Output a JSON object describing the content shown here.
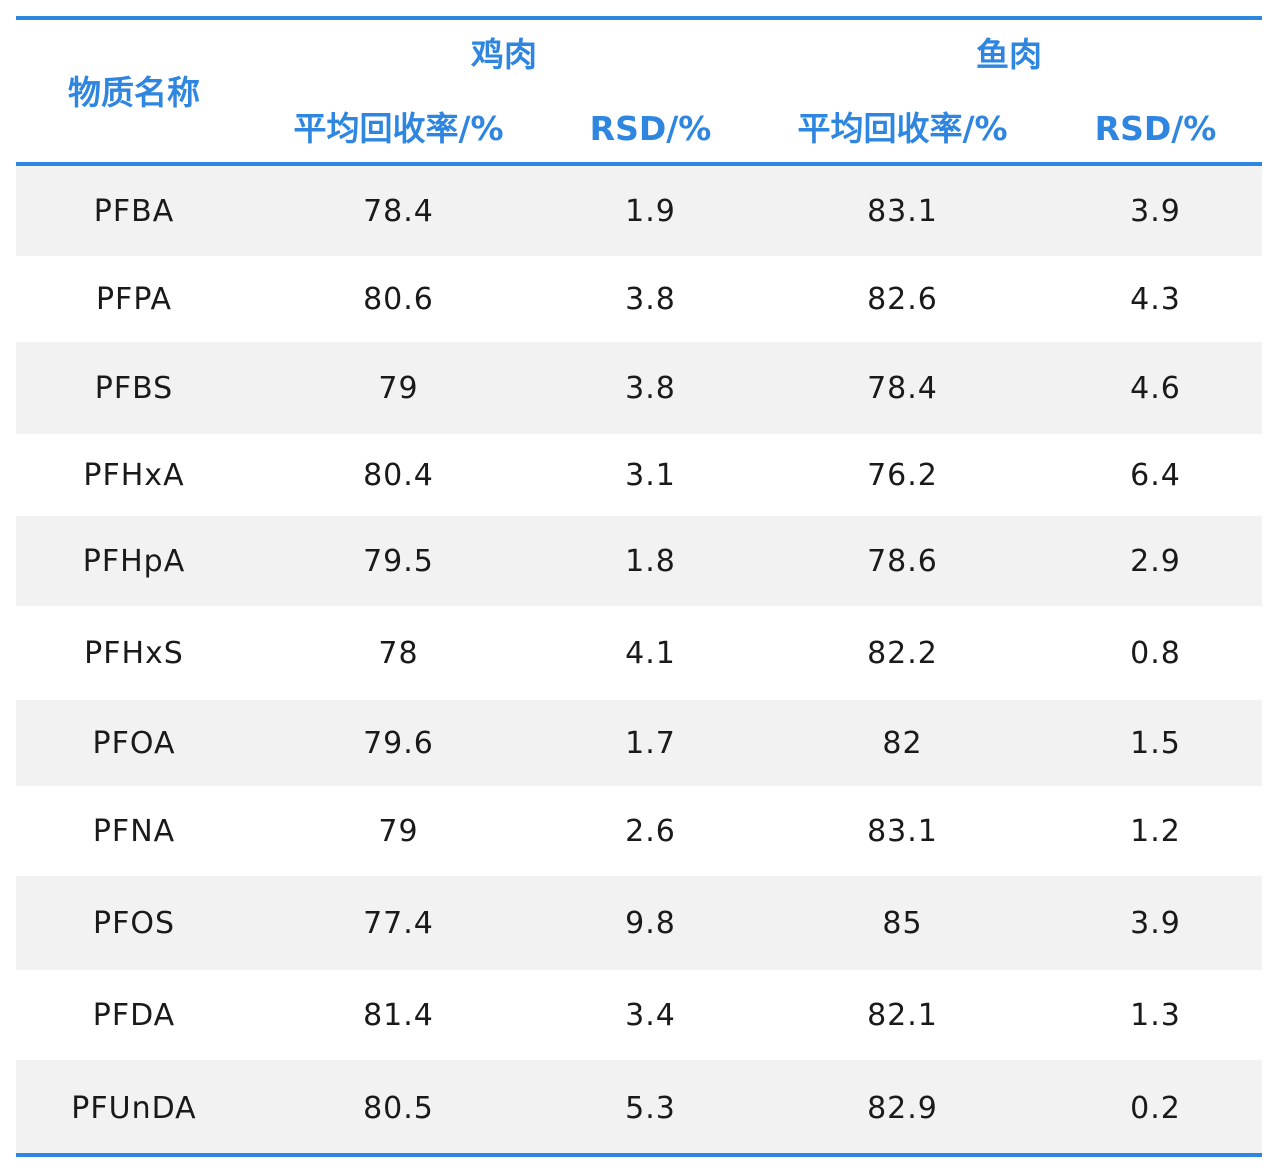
{
  "header": {
    "name_col": "物质名称",
    "group1": "鸡肉",
    "group2": "鱼肉",
    "recovery": "平均回收率/%",
    "rsd": "RSD/%"
  },
  "rows": [
    [
      "PFBA",
      "78.4",
      "1.9",
      "83.1",
      "3.9"
    ],
    [
      "PFPA",
      "80.6",
      "3.8",
      "82.6",
      "4.3"
    ],
    [
      "PFBS",
      "79",
      "3.8",
      "78.4",
      "4.6"
    ],
    [
      "PFHxA",
      "80.4",
      "3.1",
      "76.2",
      "6.4"
    ],
    [
      "PFHpA",
      "79.5",
      "1.8",
      "78.6",
      "2.9"
    ],
    [
      "PFHxS",
      "78",
      "4.1",
      "82.2",
      "0.8"
    ],
    [
      "PFOA",
      "79.6",
      "1.7",
      "82",
      "1.5"
    ],
    [
      "PFNA",
      "79",
      "2.6",
      "83.1",
      "1.2"
    ],
    [
      "PFOS",
      "77.4",
      "9.8",
      "85",
      "3.9"
    ],
    [
      "PFDA",
      "81.4",
      "3.4",
      "82.1",
      "1.3"
    ],
    [
      "PFUnDA",
      "80.5",
      "5.3",
      "82.9",
      "0.2"
    ]
  ],
  "colors": {
    "accent": "#2f86e0",
    "shade": "#f2f2f2",
    "text": "#1a1a1a"
  }
}
